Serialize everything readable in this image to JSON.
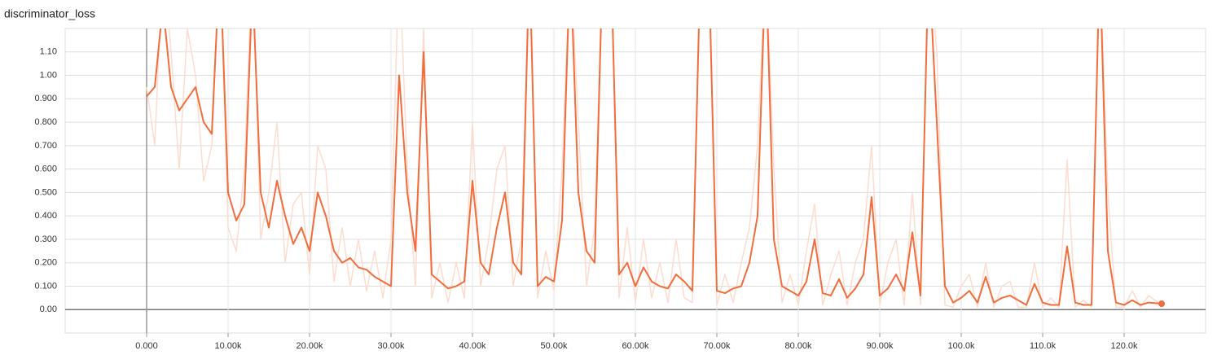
{
  "chart_data": {
    "type": "line",
    "title": "discriminator_loss",
    "x": [
      0,
      1000,
      2000,
      3000,
      4000,
      5000,
      6000,
      7000,
      8000,
      9000,
      10000,
      11000,
      12000,
      13000,
      14000,
      15000,
      16000,
      17000,
      18000,
      19000,
      20000,
      21000,
      22000,
      23000,
      24000,
      25000,
      26000,
      27000,
      28000,
      29000,
      30000,
      31000,
      32000,
      33000,
      34000,
      35000,
      36000,
      37000,
      38000,
      39000,
      40000,
      41000,
      42000,
      43000,
      44000,
      45000,
      46000,
      47000,
      48000,
      49000,
      50000,
      51000,
      52000,
      53000,
      54000,
      55000,
      56000,
      57000,
      58000,
      59000,
      60000,
      61000,
      62000,
      63000,
      64000,
      65000,
      66000,
      67000,
      68000,
      69000,
      70000,
      71000,
      72000,
      73000,
      74000,
      75000,
      76000,
      77000,
      78000,
      79000,
      80000,
      81000,
      82000,
      83000,
      84000,
      85000,
      86000,
      87000,
      88000,
      89000,
      90000,
      91000,
      92000,
      93000,
      94000,
      95000,
      96000,
      97000,
      98000,
      99000,
      100000,
      101000,
      102000,
      103000,
      104000,
      105000,
      106000,
      107000,
      108000,
      109000,
      110000,
      111000,
      112000,
      113000,
      114000,
      115000,
      116000,
      117000,
      118000,
      119000,
      120000,
      121000,
      122000,
      123000,
      124600
    ],
    "series": [
      {
        "color": "#fcdccf",
        "values": [
          0.95,
          0.7,
          1.5,
          1.1,
          0.6,
          1.2,
          1.0,
          0.55,
          0.7,
          1.5,
          0.35,
          0.25,
          0.6,
          1.5,
          0.3,
          0.5,
          0.8,
          0.2,
          0.45,
          0.5,
          0.15,
          0.7,
          0.6,
          0.12,
          0.35,
          0.1,
          0.3,
          0.08,
          0.25,
          0.05,
          0.3,
          1.5,
          0.6,
          0.1,
          1.2,
          0.05,
          0.2,
          0.03,
          0.2,
          0.05,
          0.8,
          0.1,
          0.3,
          0.6,
          0.7,
          0.1,
          0.3,
          1.5,
          0.05,
          0.25,
          0.08,
          0.6,
          1.5,
          0.8,
          0.1,
          0.35,
          1.5,
          1.5,
          0.05,
          0.35,
          0.03,
          0.3,
          0.05,
          0.2,
          0.03,
          0.3,
          0.05,
          0.03,
          1.5,
          1.5,
          0.02,
          0.15,
          0.03,
          0.2,
          0.35,
          0.7,
          1.5,
          0.6,
          0.03,
          0.15,
          0.02,
          0.25,
          0.45,
          0.02,
          0.15,
          0.25,
          0.02,
          0.2,
          0.3,
          0.7,
          0.02,
          0.2,
          0.3,
          0.02,
          0.5,
          0.02,
          1.5,
          1.1,
          0.02,
          0.01,
          0.1,
          0.15,
          0.01,
          0.2,
          0.01,
          0.1,
          0.12,
          0.01,
          0.01,
          0.2,
          0.01,
          0.05,
          0.01,
          0.64,
          0.01,
          0.04,
          0.01,
          1.5,
          0.5,
          0.01,
          0.01,
          0.08,
          0.01,
          0.06,
          0.02
        ]
      },
      {
        "color": "#f26d3d",
        "values": [
          0.91,
          0.95,
          1.3,
          0.95,
          0.85,
          0.9,
          0.95,
          0.8,
          0.75,
          1.5,
          0.5,
          0.38,
          0.45,
          1.4,
          0.5,
          0.35,
          0.55,
          0.4,
          0.28,
          0.35,
          0.25,
          0.5,
          0.4,
          0.25,
          0.2,
          0.22,
          0.18,
          0.17,
          0.14,
          0.12,
          0.1,
          1.0,
          0.5,
          0.25,
          1.1,
          0.15,
          0.12,
          0.09,
          0.1,
          0.12,
          0.55,
          0.2,
          0.15,
          0.35,
          0.5,
          0.2,
          0.15,
          1.5,
          0.1,
          0.14,
          0.12,
          0.38,
          1.5,
          0.5,
          0.25,
          0.2,
          1.5,
          1.5,
          0.15,
          0.2,
          0.1,
          0.18,
          0.12,
          0.1,
          0.09,
          0.15,
          0.12,
          0.08,
          1.5,
          1.5,
          0.08,
          0.07,
          0.09,
          0.1,
          0.2,
          0.4,
          1.5,
          0.3,
          0.1,
          0.08,
          0.06,
          0.12,
          0.3,
          0.07,
          0.06,
          0.13,
          0.05,
          0.09,
          0.15,
          0.48,
          0.06,
          0.09,
          0.15,
          0.08,
          0.33,
          0.06,
          1.5,
          0.8,
          0.1,
          0.03,
          0.05,
          0.08,
          0.03,
          0.14,
          0.03,
          0.05,
          0.06,
          0.04,
          0.02,
          0.11,
          0.03,
          0.02,
          0.02,
          0.27,
          0.03,
          0.02,
          0.02,
          1.5,
          0.25,
          0.03,
          0.02,
          0.04,
          0.02,
          0.03,
          0.025
        ]
      }
    ],
    "xlim": [
      -10000,
      130000
    ],
    "ylim": [
      -0.1,
      1.2
    ],
    "xticks": [
      {
        "value": 0,
        "label": "0.000"
      },
      {
        "value": 10000,
        "label": "10.00k"
      },
      {
        "value": 20000,
        "label": "20.00k"
      },
      {
        "value": 30000,
        "label": "30.00k"
      },
      {
        "value": 40000,
        "label": "40.00k"
      },
      {
        "value": 50000,
        "label": "50.00k"
      },
      {
        "value": 60000,
        "label": "60.00k"
      },
      {
        "value": 70000,
        "label": "70.00k"
      },
      {
        "value": 80000,
        "label": "80.00k"
      },
      {
        "value": 90000,
        "label": "90.00k"
      },
      {
        "value": 100000,
        "label": "100.0k"
      },
      {
        "value": 110000,
        "label": "110.0k"
      },
      {
        "value": 120000,
        "label": "120.0k"
      }
    ],
    "yticks": [
      {
        "value": 0,
        "label": "0.00"
      },
      {
        "value": 0.1,
        "label": "0.100"
      },
      {
        "value": 0.2,
        "label": "0.200"
      },
      {
        "value": 0.3,
        "label": "0.300"
      },
      {
        "value": 0.4,
        "label": "0.400"
      },
      {
        "value": 0.5,
        "label": "0.500"
      },
      {
        "value": 0.6,
        "label": "0.600"
      },
      {
        "value": 0.7,
        "label": "0.700"
      },
      {
        "value": 0.8,
        "label": "0.800"
      },
      {
        "value": 0.9,
        "label": "0.900"
      },
      {
        "value": 1.0,
        "label": "1.00"
      },
      {
        "value": 1.1,
        "label": "1.10"
      }
    ],
    "grid": true
  }
}
